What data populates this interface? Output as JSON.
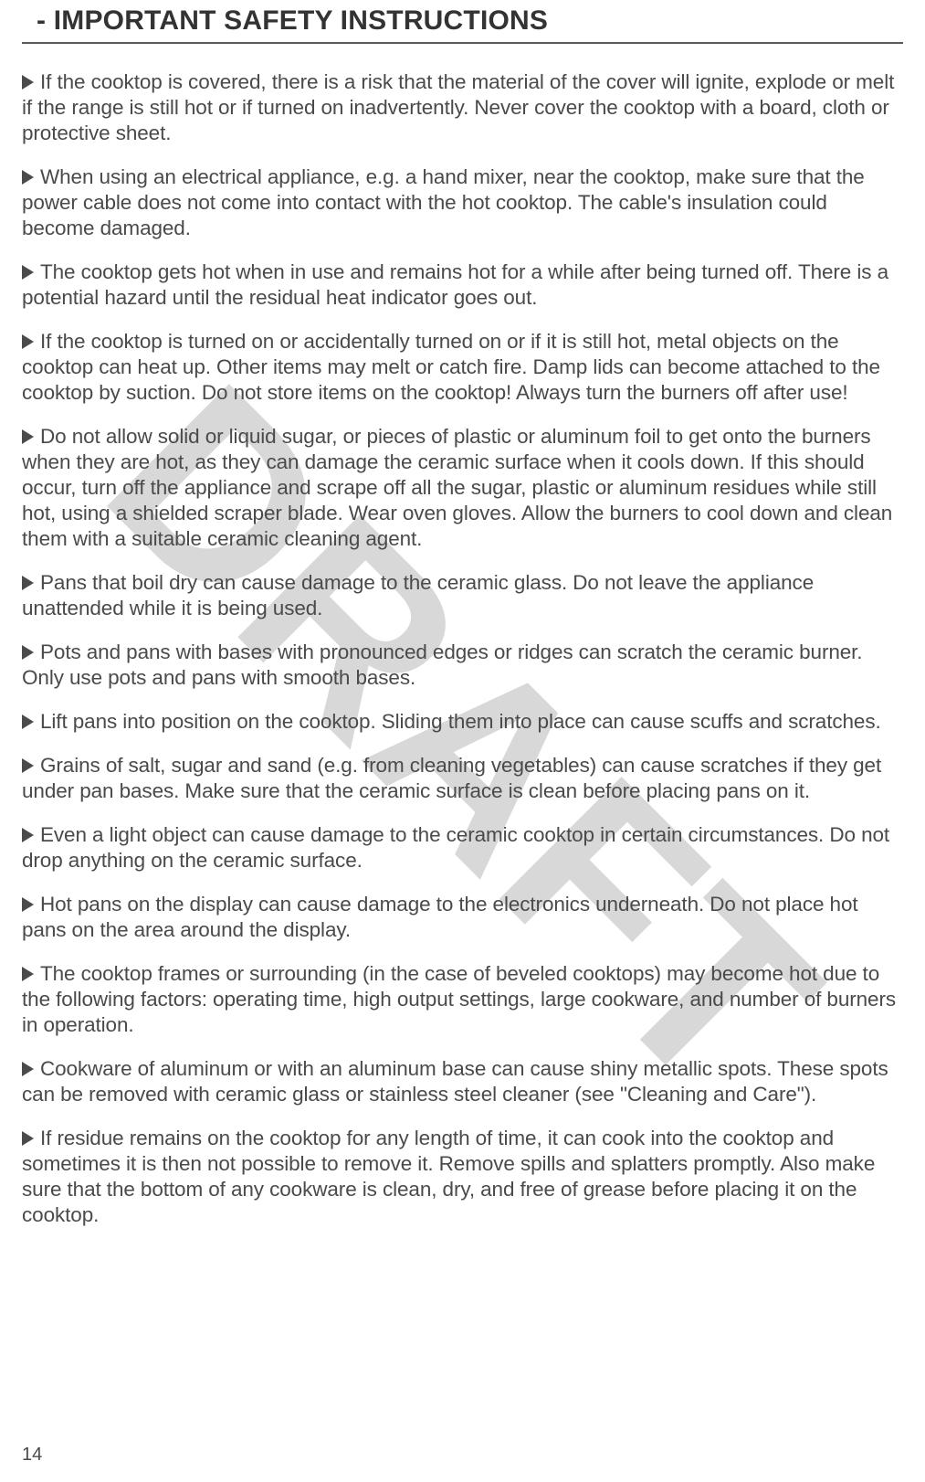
{
  "header": {
    "title": "- IMPORTANT SAFETY INSTRUCTIONS"
  },
  "watermark": {
    "text": "DRAFT",
    "color": "#d8d8d8"
  },
  "bullet": {
    "fill": "#4a4a4a"
  },
  "paragraphs": [
    "If the cooktop is covered, there is a risk that the material of the cover will ignite, explode or melt if the range is still hot or if turned on inadvertently. Never cover the cooktop with a board, cloth or protective sheet.",
    "When using an electrical appliance, e.g. a hand mixer, near the cooktop, make sure that the power cable does not come into contact with the hot cooktop. The cable's insulation could become damaged.",
    "The cooktop gets hot when in use and remains hot for a while after being turned off. There is a potential hazard until the residual heat indicator goes out.",
    "If the cooktop is turned on or accidentally turned on or if it is still hot, metal objects on the cooktop can heat up. Other items may melt or catch fire. Damp lids can become attached to the cooktop by suction. Do not store items on the cooktop! Always turn the burners off after use!",
    "Do not allow solid or liquid sugar, or pieces of plastic or aluminum foil to get onto the burners when they are hot, as they can damage the ceramic surface when it cools down. If this should occur, turn off the appliance and scrape off all the sugar, plastic or aluminum residues while still hot, using a shielded scraper blade. Wear oven gloves. Allow the burners to cool down and clean them with a suitable ceramic cleaning agent.",
    "Pans that boil dry can cause damage to the ceramic glass. Do not leave the appliance unattended while it is being used.",
    "Pots and pans with bases with pronounced edges or ridges can scratch the ceramic burner. Only use pots and pans with smooth bases.",
    "Lift pans into position on the cooktop. Sliding them into place can cause scuffs and scratches.",
    "Grains of salt, sugar and sand (e.g. from cleaning vegetables) can cause scratches if they get under pan bases. Make sure that the ceramic surface is clean before placing pans on it.",
    "Even a light object can cause damage to the ceramic cooktop in certain circumstances. Do not drop anything on the ceramic surface.",
    "Hot pans on the display can cause damage to the electronics underneath. Do not place hot pans on the area around the display.",
    "The cooktop frames or surrounding (in the case of beveled cooktops) may become hot due to the following factors: operating time, high output settings, large cookware, and number of burners in operation.",
    "Cookware of aluminum or with an aluminum base can cause shiny metallic spots. These spots can be removed with ceramic glass or stainless steel cleaner (see \"Cleaning and Care\").",
    "If residue remains on the cooktop for any length of time, it can cook into the cooktop and sometimes it is then not possible to remove it. Remove spills and splatters promptly. Also make sure that the bottom of any cookware is clean, dry, and free of grease before placing it on the cooktop."
  ],
  "page_number": "14",
  "colors": {
    "text": "#4a4a4a",
    "header": "#333333",
    "divider": "#5a5a5a",
    "background": "#ffffff"
  }
}
